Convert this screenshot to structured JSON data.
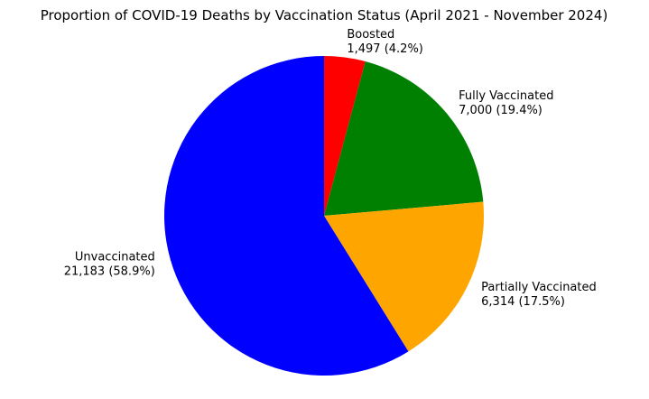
{
  "chart_data": {
    "type": "pie",
    "title": "Proportion of COVID-19 Deaths by Vaccination Status (April 2021 - November 2024)",
    "slices": [
      {
        "name": "Boosted",
        "value": 1497,
        "value_label": "1,497 (4.2%)",
        "percent": 4.2,
        "color": "#ff0000"
      },
      {
        "name": "Fully Vaccinated",
        "value": 7000,
        "value_label": "7,000 (19.4%)",
        "percent": 19.4,
        "color": "#008000"
      },
      {
        "name": "Partially Vaccinated",
        "value": 6314,
        "value_label": "6,314 (17.5%)",
        "percent": 17.5,
        "color": "#ffa500"
      },
      {
        "name": "Unvaccinated",
        "value": 21183,
        "value_label": "21,183 (58.9%)",
        "percent": 58.9,
        "color": "#0000ff"
      }
    ],
    "start_angle": "top",
    "direction": "clockwise",
    "legend": "none",
    "grid": false
  }
}
